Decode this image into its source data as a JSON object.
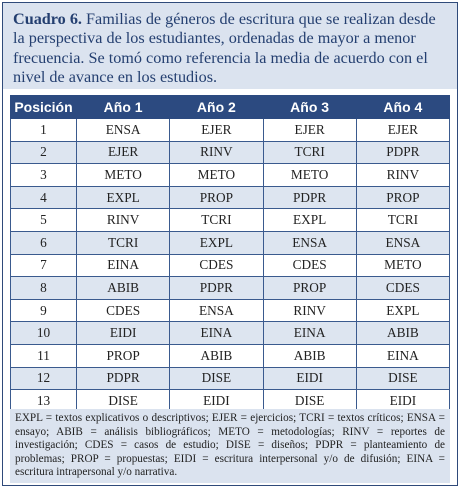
{
  "caption": {
    "label": "Cuadro 6.",
    "text": "Familias de géneros de escritura que se realizan desde la perspectiva de los estudiantes, ordenadas de mayor a menor frecuencia. Se tomó como referencia la media de acuerdo con el nivel de avance en los estudios."
  },
  "table": {
    "headers": [
      "Posición",
      "Año 1",
      "Año 2",
      "Año 3",
      "Año 4"
    ],
    "rows": [
      [
        "1",
        "ENSA",
        "EJER",
        "EJER",
        "EJER"
      ],
      [
        "2",
        "EJER",
        "RINV",
        "TCRI",
        "PDPR"
      ],
      [
        "3",
        "METO",
        "METO",
        "METO",
        "RINV"
      ],
      [
        "4",
        "EXPL",
        "PROP",
        "PDPR",
        "PROP"
      ],
      [
        "5",
        "RINV",
        "TCRI",
        "EXPL",
        "TCRI"
      ],
      [
        "6",
        "TCRI",
        "EXPL",
        "ENSA",
        "ENSA"
      ],
      [
        "7",
        "EINA",
        "CDES",
        "CDES",
        "METO"
      ],
      [
        "8",
        "ABIB",
        "PDPR",
        "PROP",
        "CDES"
      ],
      [
        "9",
        "CDES",
        "ENSA",
        "RINV",
        "EXPL"
      ],
      [
        "10",
        "EIDI",
        "EINA",
        "EINA",
        "ABIB"
      ],
      [
        "11",
        "PROP",
        "ABIB",
        "ABIB",
        "EINA"
      ],
      [
        "12",
        "PDPR",
        "DISE",
        "EIDI",
        "DISE"
      ],
      [
        "13",
        "DISE",
        "EIDI",
        "DISE",
        "EIDI"
      ]
    ]
  },
  "notes": "EXPL = textos explicativos o descriptivos; EJER = ejercicios; TCRI = textos críticos; ENSA = ensayo; ABIB = análisis bibliográficos; METO = metodologías; RINV = reportes de investigación; CDES = casos de estudio; DISE = diseños; PDPR = planteamiento de problemas; PROP = propuestas; EIDI = escritura interpersonal y/o de difusión; EINA = escritura intrapersonal y/o narrativa."
}
